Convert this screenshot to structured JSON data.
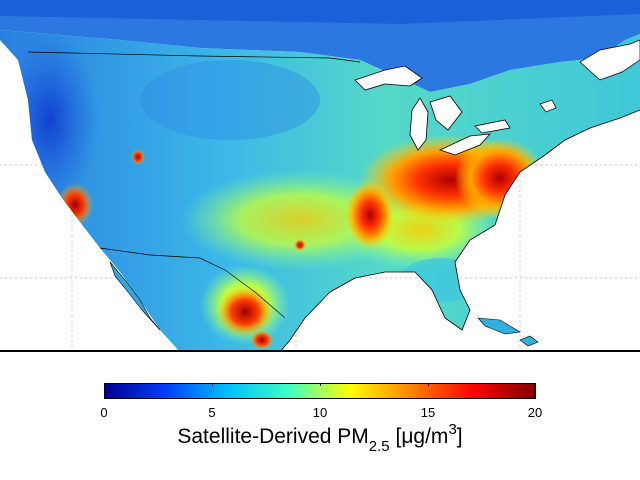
{
  "map": {
    "title": "",
    "region": "contiguous-united-states",
    "variable": "pm25-concentration"
  },
  "colorbar": {
    "min": 0,
    "max": 20,
    "ticks": [
      "0",
      "5",
      "10",
      "15",
      "20"
    ],
    "label_main": "Satellite-Derived PM",
    "label_sub": "2.5",
    "label_unit_open": " [",
    "label_unit_mu": "μ",
    "label_unit_g": "g/m",
    "label_unit_sup": "3",
    "label_unit_close": "]",
    "colormap": [
      "#00008f",
      "#0040ff",
      "#00c0ff",
      "#40ffbf",
      "#ffff00",
      "#ff8000",
      "#ff0000",
      "#800000"
    ]
  },
  "colors": {
    "water": "#ffffff",
    "land_low": "#1e6edc",
    "land_mid": "#3cc8dc",
    "land_high": "#d02010"
  }
}
